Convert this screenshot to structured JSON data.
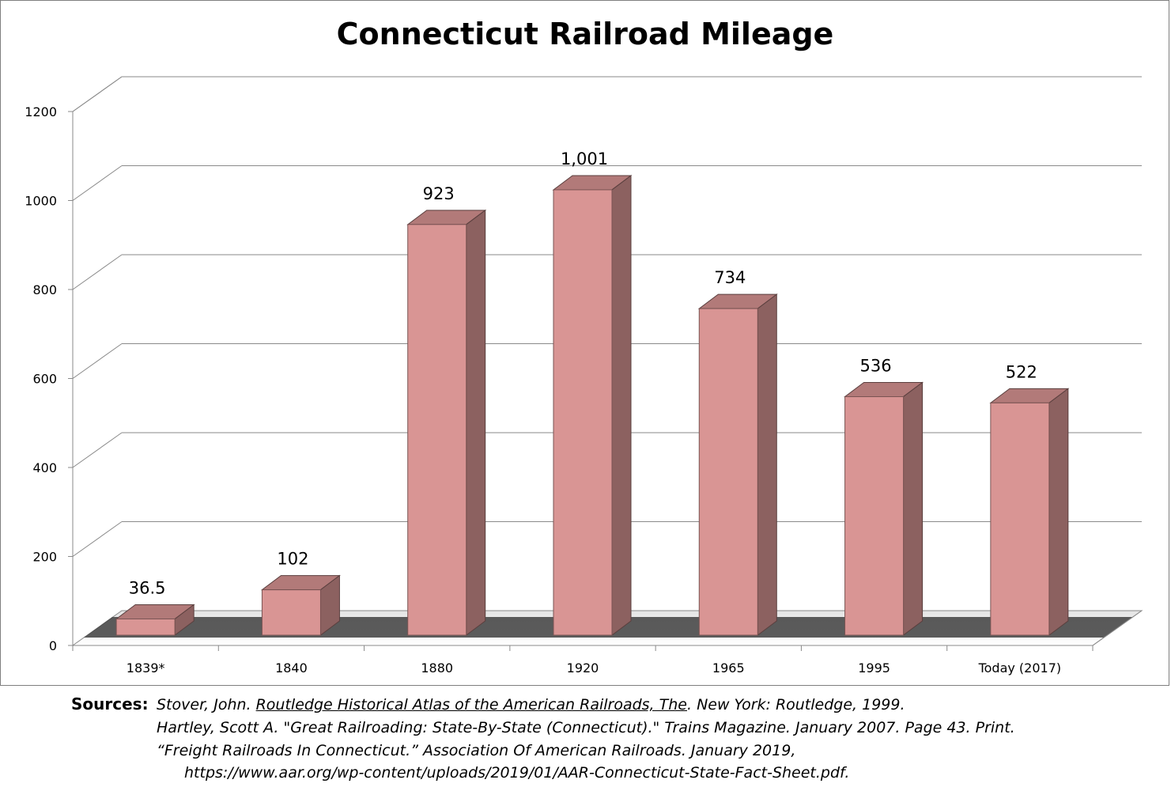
{
  "chart_data": {
    "type": "bar",
    "title": "Connecticut Railroad Mileage",
    "categories": [
      "1839*",
      "1840",
      "1880",
      "1920",
      "1965",
      "1995",
      "Today  (2017)"
    ],
    "values": [
      36.5,
      102,
      923,
      1001,
      734,
      536,
      522
    ],
    "data_labels": [
      "36.5",
      "102",
      "923",
      "1,001",
      "734",
      "536",
      "522"
    ],
    "y_ticks": [
      "0",
      "200",
      "400",
      "600",
      "800",
      "1000",
      "1200"
    ],
    "ylim": [
      0,
      1200
    ],
    "xlabel": "",
    "ylabel": "",
    "grid": true,
    "style": "3d-column",
    "colors": {
      "bar_front": "#d99594",
      "bar_top": "#b27a79",
      "bar_side": "#8c6160"
    }
  },
  "sources": {
    "heading": "Sources:",
    "line1_before": "Stover, John. ",
    "line1_title": "Routledge Historical Atlas of the American Railroads, The",
    "line1_after": ". New York: Routledge, 1999.",
    "line2": "Hartley, Scott A. \"Great Railroading: State-By-State (Connecticut).\" Trains Magazine. January 2007. Page 43. Print.",
    "line3": "“Freight Railroads In Connecticut.” Association Of American Railroads. January 2019,",
    "line4": "https://www.aar.org/wp-content/uploads/2019/01/AAR-Connecticut-State-Fact-Sheet.pdf."
  }
}
